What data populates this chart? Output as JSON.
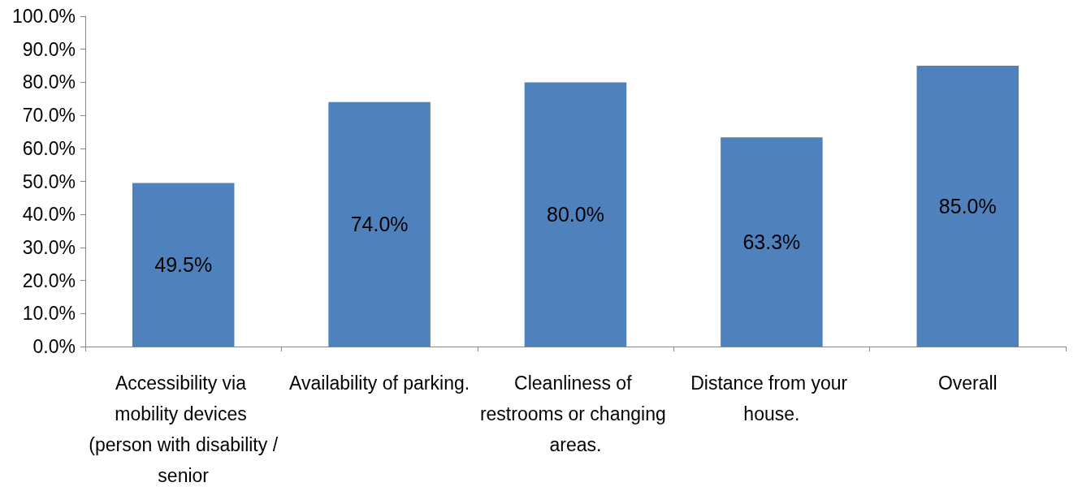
{
  "chart_data": {
    "type": "bar",
    "categories": [
      "Accessibility via mobility devices (person with disability /senior",
      "Availability of parking.",
      "Cleanliness of restrooms or changing areas.",
      "Distance from your house.",
      "Overall"
    ],
    "values": [
      49.5,
      74.0,
      80.0,
      63.3,
      85.0
    ],
    "value_labels": [
      "49.5%",
      "74.0%",
      "80.0%",
      "63.3%",
      "85.0%"
    ],
    "color": "#4f81bd",
    "ylim": [
      0,
      100
    ],
    "yticks": [
      {
        "value": 0,
        "label": "0.0%"
      },
      {
        "value": 10,
        "label": "10.0%"
      },
      {
        "value": 20,
        "label": "20.0%"
      },
      {
        "value": 30,
        "label": "30.0%"
      },
      {
        "value": 40,
        "label": "40.0%"
      },
      {
        "value": 50,
        "label": "50.0%"
      },
      {
        "value": 60,
        "label": "60.0%"
      },
      {
        "value": 70,
        "label": "70.0%"
      },
      {
        "value": 80,
        "label": "80.0%"
      },
      {
        "value": 90,
        "label": "90.0%"
      },
      {
        "value": 100,
        "label": "100.0%"
      }
    ],
    "grid": false
  }
}
